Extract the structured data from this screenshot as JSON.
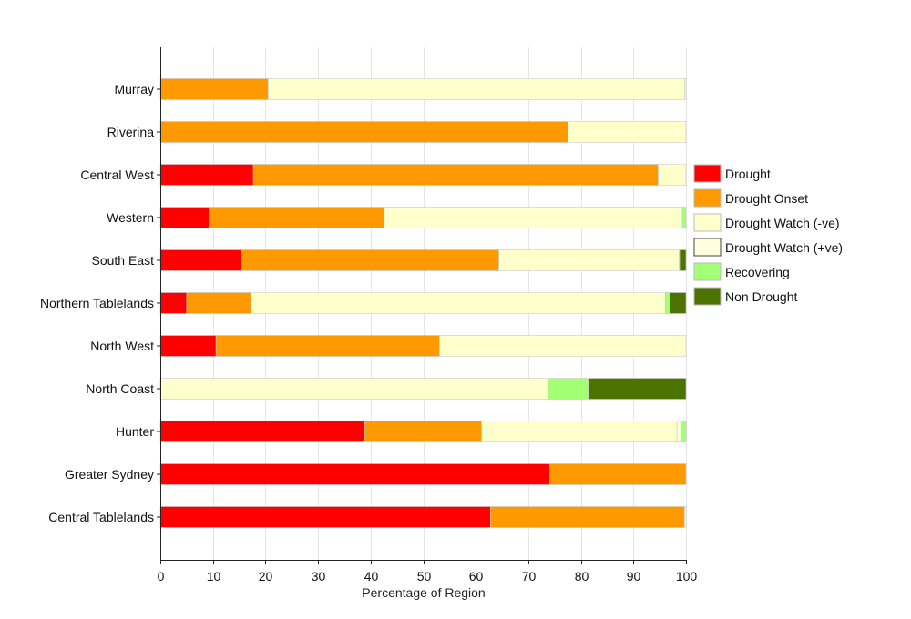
{
  "chart_data": {
    "type": "bar",
    "orientation": "horizontal",
    "stacked": true,
    "xlabel": "Percentage of Region",
    "ylabel": "",
    "xlim": [
      0,
      100
    ],
    "xticks": [
      0,
      10,
      20,
      30,
      40,
      50,
      60,
      70,
      80,
      90,
      100
    ],
    "grid": "vertical",
    "legend_position": "right",
    "categories": [
      "Murray",
      "Riverina",
      "Central West",
      "Western",
      "South East",
      "Northern Tablelands",
      "North West",
      "North Coast",
      "Hunter",
      "Greater Sydney",
      "Central Tablelands"
    ],
    "series": [
      {
        "name": "Drought",
        "color": "#ff0000",
        "values": [
          0,
          0,
          17.7,
          9.3,
          15.4,
          5.0,
          10.6,
          0,
          38.9,
          74.1,
          62.8
        ]
      },
      {
        "name": "Drought Onset",
        "color": "#ff9900",
        "values": [
          20.5,
          77.6,
          77.0,
          33.3,
          49.0,
          12.2,
          42.5,
          0,
          22.2,
          25.9,
          36.9
        ]
      },
      {
        "name": "Drought Watch (-ve)",
        "color": "#ffffcc",
        "values": [
          79.2,
          22.4,
          5.3,
          56.7,
          34.3,
          78.9,
          46.9,
          73.8,
          37.2,
          0,
          0
        ]
      },
      {
        "name": "Drought Watch (+ve)",
        "color": "#ffffdd",
        "values": [
          0.3,
          0,
          0,
          0,
          0.1,
          0,
          0,
          0,
          0.7,
          0,
          0.3
        ]
      },
      {
        "name": "Recovering",
        "color": "#a3ff73",
        "values": [
          0,
          0,
          0,
          0.7,
          0,
          0.8,
          0,
          7.6,
          1.0,
          0,
          0
        ]
      },
      {
        "name": "Non Drought",
        "color": "#4c7300",
        "values": [
          0,
          0,
          0,
          0,
          1.2,
          3.1,
          0,
          18.6,
          0,
          0,
          0
        ]
      }
    ]
  }
}
